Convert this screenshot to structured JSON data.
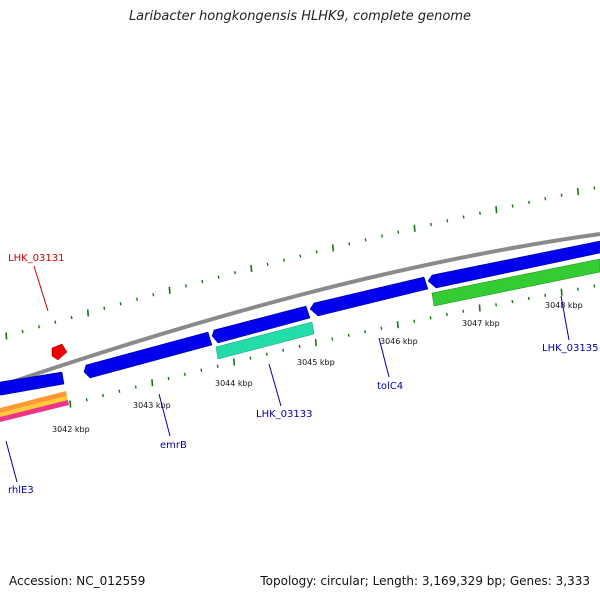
{
  "title": "Laribacter hongkongensis HLHK9, complete genome",
  "footer": {
    "accession": "Accession: NC_012559",
    "summary": "Topology: circular; Length: 3,169,329 bp; Genes: 3,333"
  },
  "colors": {
    "forward_gene": "#0000ee",
    "reverse_gene_cyan": "#22ddaa",
    "reverse_gene_green": "#22bb22",
    "rna_feature": "#ee0000",
    "backbone": "#888888",
    "ticks": "#117711",
    "label_blue": "#0000aa",
    "label_red": "#cc0000"
  },
  "kbp_labels": [
    "3042 kbp",
    "3043 kbp",
    "3044 kbp",
    "3045 kbp",
    "3046 kbp",
    "3047 kbp",
    "3048 kbp"
  ],
  "gene_labels": {
    "lhk_03131": "LHK_03131",
    "rhle3": "rhlE3",
    "emrb": "emrB",
    "lhk_03133": "LHK_03133",
    "tolc4": "tolC4",
    "lhk_03135": "LHK_03135"
  }
}
